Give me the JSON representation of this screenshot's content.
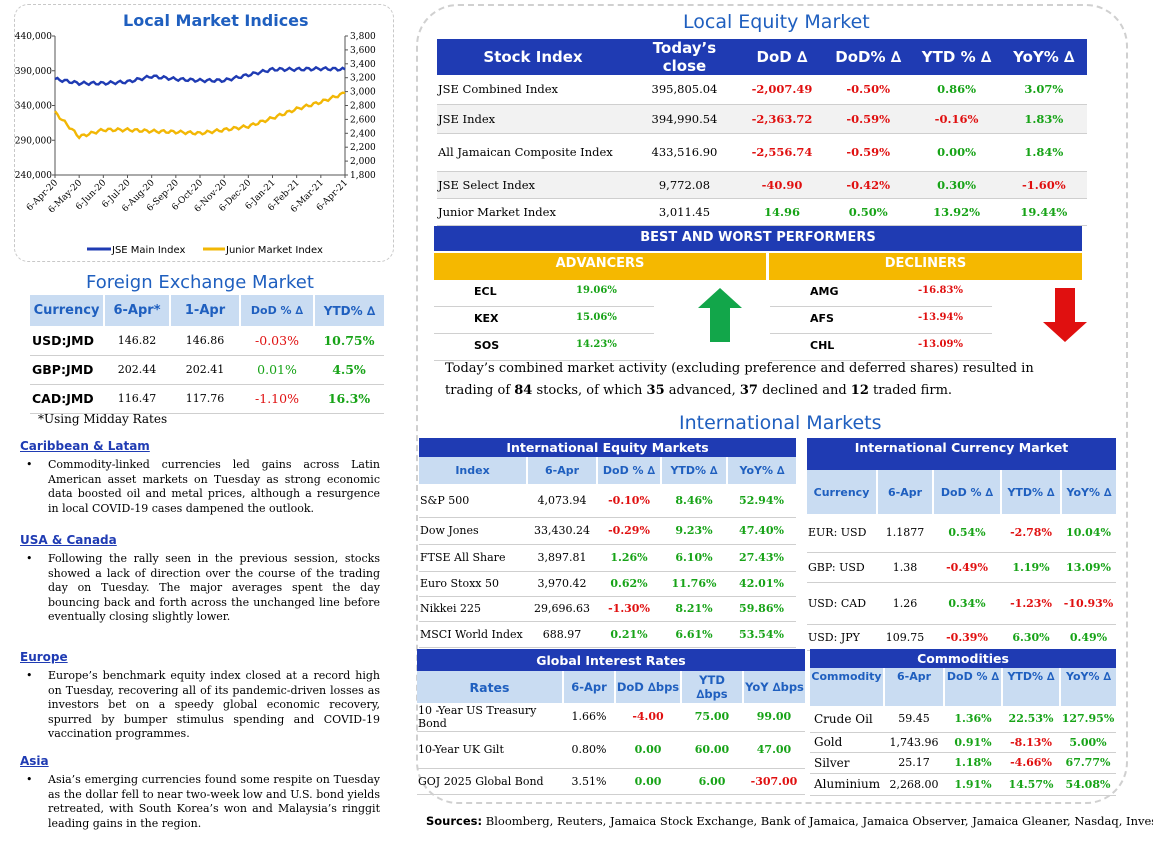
{
  "indices_chart": {
    "title": "Local Market Indices",
    "legend": [
      "JSE Main Index",
      "Junior Market Index"
    ],
    "colors": {
      "main": "#1f3bb3",
      "junior": "#f2b705"
    }
  },
  "chart_data": {
    "type": "line",
    "title": "Local Market Indices",
    "x": [
      "6-Apr-20",
      "6-May-20",
      "6-Jun-20",
      "6-Jul-20",
      "6-Aug-20",
      "6-Sep-20",
      "6-Oct-20",
      "6-Nov-20",
      "6-Dec-20",
      "6-Jan-21",
      "6-Feb-21",
      "6-Mar-21",
      "6-Apr-21"
    ],
    "yticks_left": [
      "440,000",
      "390,000",
      "340,000",
      "290,000",
      "240,000"
    ],
    "yticks_right": [
      "3,800",
      "3,600",
      "3,400",
      "3,200",
      "3,000",
      "2,800",
      "2,600",
      "2,400",
      "2,200",
      "2,000",
      "1,800"
    ],
    "ylim_left": [
      240000,
      440000
    ],
    "ylim_right": [
      1800,
      3800
    ],
    "series": [
      {
        "name": "JSE Main Index",
        "axis": "left",
        "values": [
          378000,
          372000,
          372000,
          374000,
          382000,
          378000,
          376000,
          376000,
          384000,
          392000,
          392000,
          393000,
          392000
        ]
      },
      {
        "name": "Junior Market Index",
        "axis": "right",
        "values": [
          2700,
          2350,
          2450,
          2450,
          2430,
          2420,
          2400,
          2450,
          2500,
          2620,
          2750,
          2850,
          2980
        ]
      }
    ],
    "legend_position": "bottom"
  },
  "fx": {
    "title": "Foreign Exchange Market",
    "headers": [
      "Currency",
      "6-Apr*",
      "1-Apr",
      "DoD % ∆",
      "YTD% ∆"
    ],
    "rows": [
      {
        "c": "USD:JMD",
        "a": "146.82",
        "b": "146.86",
        "d": "-0.03%",
        "y": "10.75%"
      },
      {
        "c": "GBP:JMD",
        "a": "202.44",
        "b": "202.41",
        "d": "0.01%",
        "y": "4.5%"
      },
      {
        "c": "CAD:JMD",
        "a": "116.47",
        "b": "117.76",
        "d": "-1.10%",
        "y": "16.3%"
      }
    ],
    "note": "*Using Midday Rates"
  },
  "news": [
    {
      "h": "Caribbean & Latam",
      "p": "Commodity-linked currencies led gains across Latin American asset markets on Tuesday as strong economic data boosted oil and metal prices, although a resurgence in local COVID-19 cases dampened the outlook."
    },
    {
      "h": "USA & Canada",
      "p": "Following the rally seen in the previous session, stocks showed a lack of direction over the course of the trading day on Tuesday. The major averages spent the day bouncing back and forth across the unchanged line before eventually closing slightly lower."
    },
    {
      "h": "Europe",
      "p": "Europe’s benchmark equity index closed at a record high on Tuesday, recovering all of its pandemic-driven losses as investors bet on a speedy global economic recovery, spurred by bumper stimulus spending and COVID-19 vaccination programmes."
    },
    {
      "h": "Asia",
      "p": "Asia’s emerging currencies found some respite on Tuesday as the dollar fell to near two-week low and U.S. bond yields retreated, with South Korea’s won and Malaysia’s ringgit leading gains in the region."
    }
  ],
  "equity": {
    "title": "Local Equity Market",
    "headers": [
      "Stock Index",
      "Today’s close",
      "DoD  ∆",
      "DoD% ∆",
      "YTD % ∆",
      "YoY% ∆"
    ],
    "rows": [
      {
        "n": "JSE Combined Index",
        "c": "395,805.04",
        "d": "-2,007.49",
        "dp": "-0.50%",
        "y": "0.86%",
        "yy": "3.07%"
      },
      {
        "n": "JSE Index",
        "c": "394,990.54",
        "d": "-2,363.72",
        "dp": "-0.59%",
        "y": "-0.16%",
        "yy": "1.83%"
      },
      {
        "n": "All Jamaican Composite Index",
        "c": "433,516.90",
        "d": "-2,556.74",
        "dp": "-0.59%",
        "y": "0.00%",
        "yy": "1.84%"
      },
      {
        "n": "JSE Select Index",
        "c": "9,772.08",
        "d": "-40.90",
        "dp": "-0.42%",
        "y": "0.30%",
        "yy": "-1.60%"
      },
      {
        "n": "Junior Market Index",
        "c": "3,011.45",
        "d": "14.96",
        "dp": "0.50%",
        "y": "13.92%",
        "yy": "19.44%"
      }
    ]
  },
  "performers": {
    "title": "BEST AND WORST PERFORMERS",
    "adv_label": "ADVANCERS",
    "dec_label": "DECLINERS",
    "advancers": [
      {
        "s": "ECL",
        "v": "19.06%"
      },
      {
        "s": "KEX",
        "v": "15.06%"
      },
      {
        "s": "SOS",
        "v": "14.23%"
      }
    ],
    "decliners": [
      {
        "s": "AMG",
        "v": "-16.83%"
      },
      {
        "s": "AFS",
        "v": "-13.94%"
      },
      {
        "s": "CHL",
        "v": "-13.09%"
      }
    ],
    "colors": {
      "up": "#12a64a",
      "down": "#e01010"
    }
  },
  "summary": {
    "t1": "Today’s combined market activity (excluding preference and deferred shares) resulted in trading of ",
    "n1": "84",
    "t2": " stocks, of which ",
    "n2": "35",
    "t3": " advanced, ",
    "n3": "37",
    "t4": " declined and ",
    "n4": "12",
    "t5": " traded firm."
  },
  "intl": {
    "title": "International Markets",
    "equity": {
      "title": "International Equity Markets",
      "headers": [
        "Index",
        "6-Apr",
        "DoD % ∆",
        "YTD% ∆",
        "YoY% ∆"
      ],
      "rows": [
        {
          "n": "S&P 500",
          "v": "4,073.94",
          "d": "-0.10%",
          "y": "8.46%",
          "yy": "52.94%"
        },
        {
          "n": "Dow Jones",
          "v": "33,430.24",
          "d": "-0.29%",
          "y": "9.23%",
          "yy": "47.40%"
        },
        {
          "n": "FTSE All Share",
          "v": "3,897.81",
          "d": "1.26%",
          "y": "6.10%",
          "yy": "27.43%"
        },
        {
          "n": "Euro Stoxx 50",
          "v": "3,970.42",
          "d": "0.62%",
          "y": "11.76%",
          "yy": "42.01%"
        },
        {
          "n": "Nikkei 225",
          "v": "29,696.63",
          "d": "-1.30%",
          "y": "8.21%",
          "yy": "59.86%"
        },
        {
          "n": "MSCI World Index",
          "v": "688.97",
          "d": "0.21%",
          "y": "6.61%",
          "yy": "53.54%"
        }
      ]
    },
    "currency": {
      "title": "International Currency Market",
      "headers": [
        "Currency",
        "6-Apr",
        "DoD % ∆",
        "YTD% ∆",
        "YoY% ∆"
      ],
      "rows": [
        {
          "n": "EUR: USD",
          "v": "1.1877",
          "d": "0.54%",
          "y": "-2.78%",
          "yy": "10.04%"
        },
        {
          "n": "GBP: USD",
          "v": "1.38",
          "d": "-0.49%",
          "y": "1.19%",
          "yy": "13.09%"
        },
        {
          "n": "USD: CAD",
          "v": "1.26",
          "d": "0.34%",
          "y": "-1.23%",
          "yy": "-10.93%"
        },
        {
          "n": "USD: JPY",
          "v": "109.75",
          "d": "-0.39%",
          "y": "6.30%",
          "yy": "0.49%"
        }
      ]
    },
    "rates": {
      "title": "Global Interest Rates",
      "headers": [
        "Rates",
        "6-Apr",
        "DoD ∆bps",
        "YTD ∆bps",
        "YoY ∆bps"
      ],
      "rows": [
        {
          "n": "10 -Year US Treasury Bond",
          "v": "1.66%",
          "d": "-4.00",
          "y": "75.00",
          "yy": "99.00"
        },
        {
          "n": "10-Year UK Gilt",
          "v": "0.80%",
          "d": "0.00",
          "y": "60.00",
          "yy": "47.00"
        },
        {
          "n": "GOJ 2025 Global Bond",
          "v": "3.51%",
          "d": "0.00",
          "y": "6.00",
          "yy": "-307.00"
        }
      ]
    },
    "commodities": {
      "title": "Commodities",
      "headers": [
        "Commodity",
        "6-Apr",
        "DoD % ∆",
        "YTD% ∆",
        "YoY% ∆"
      ],
      "rows": [
        {
          "n": "Crude Oil",
          "v": "59.45",
          "d": "1.36%",
          "y": "22.53%",
          "yy": "127.95%"
        },
        {
          "n": "Gold",
          "v": "1,743.96",
          "d": "0.91%",
          "y": "-8.13%",
          "yy": "5.00%"
        },
        {
          "n": "Silver",
          "v": "25.17",
          "d": "1.18%",
          "y": "-4.66%",
          "yy": "67.77%"
        },
        {
          "n": "Aluminium",
          "v": "2,268.00",
          "d": "1.91%",
          "y": "14.57%",
          "yy": "54.08%"
        }
      ]
    }
  },
  "sources": {
    "label": "Sources:",
    "text": " Bloomberg, Reuters, Jamaica Stock Exchange, Bank of Jamaica, Jamaica Observer, Jamaica Gleaner, Nasdaq, Investing.com"
  }
}
